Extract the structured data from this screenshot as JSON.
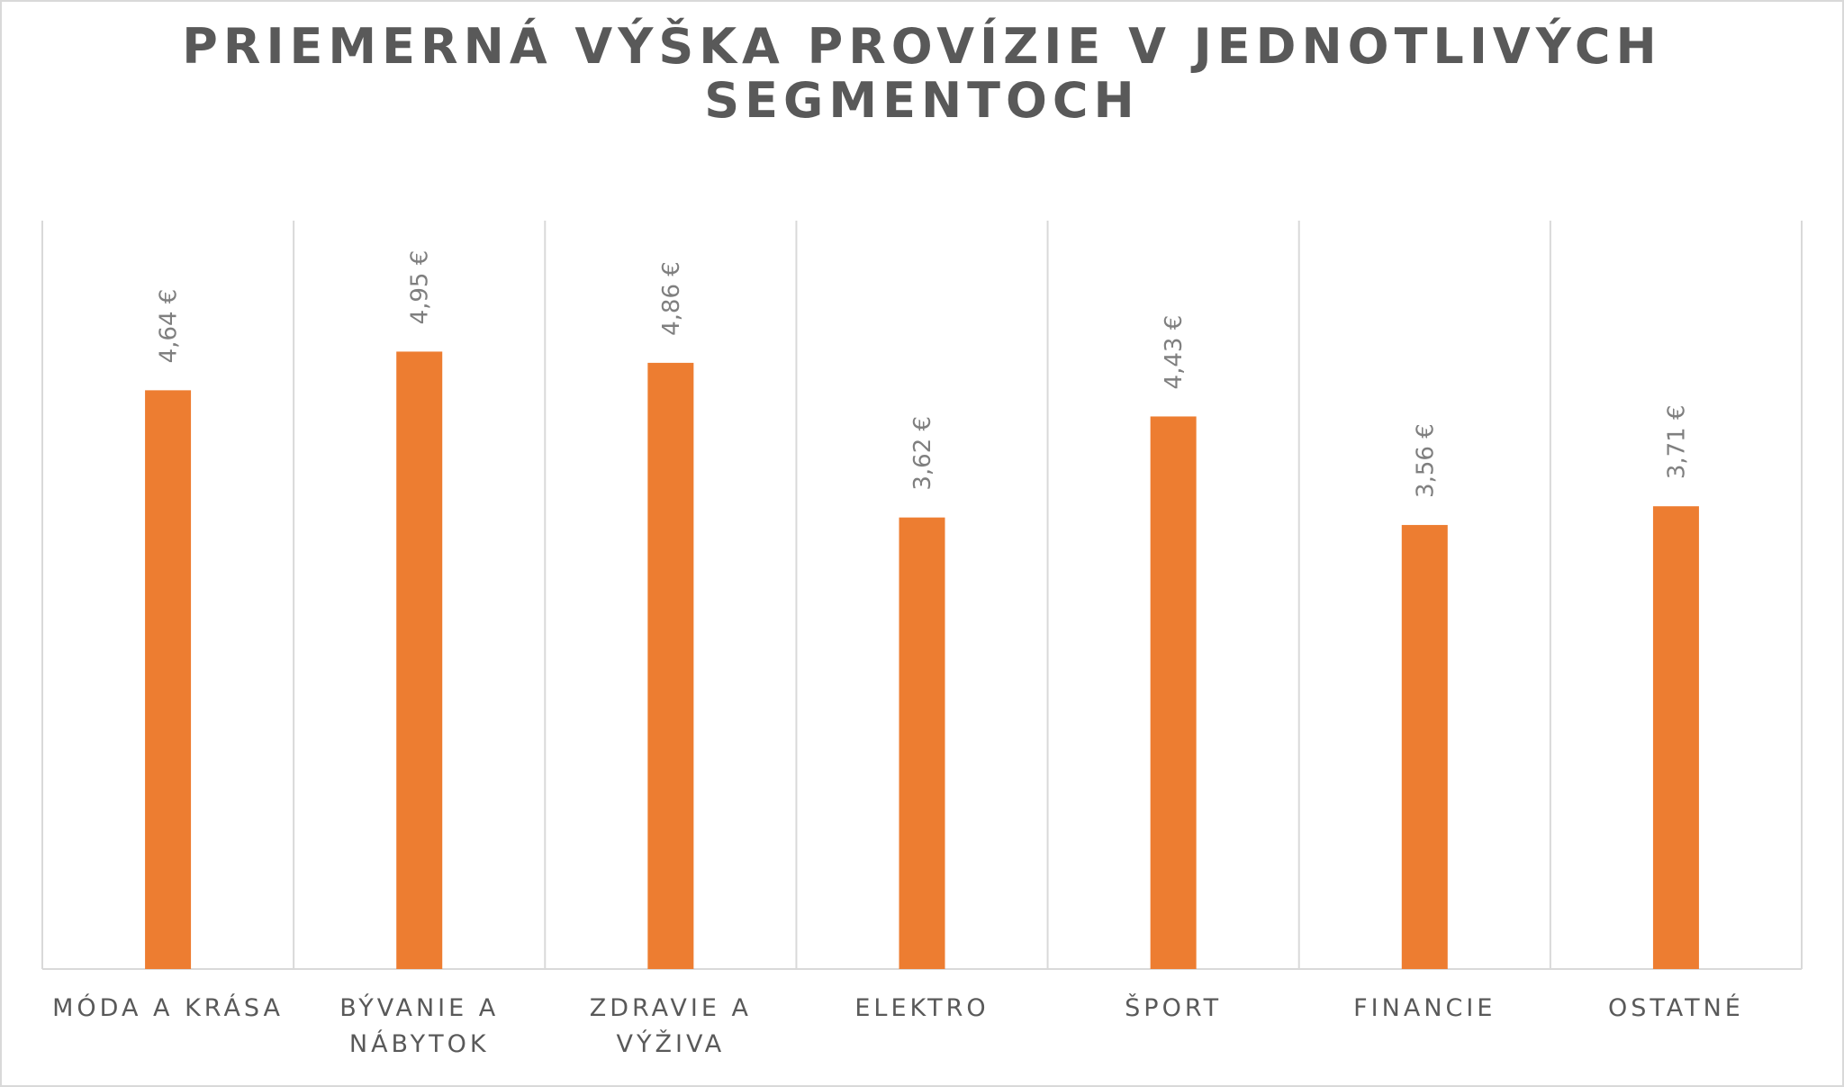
{
  "chart_data": {
    "type": "bar",
    "title_lines": [
      "PRIEMERNÁ VÝŠKA PROVÍZIE V JEDNOTLIVÝCH",
      "SEGMENTOCH"
    ],
    "categories": [
      [
        "MÓDA A KRÁSA"
      ],
      [
        "BÝVANIE A",
        "NÁBYTOK"
      ],
      [
        "ZDRAVIE A",
        "VÝŽIVA"
      ],
      [
        "ELEKTRO"
      ],
      [
        "ŠPORT"
      ],
      [
        "FINANCIE"
      ],
      [
        "OSTATNÉ"
      ]
    ],
    "values": [
      4.64,
      4.95,
      4.86,
      3.62,
      4.43,
      3.56,
      3.71
    ],
    "data_labels": [
      "4,64 €",
      "4,95 €",
      "4,86 €",
      "3,62 €",
      "4,43 €",
      "3,56 €",
      "3,71 €"
    ],
    "ylim": [
      0,
      6
    ],
    "grid": "vertical-category-separators",
    "legend": "none",
    "bar_color": "#ed7d31",
    "grid_color": "#d9d9d9",
    "label_color": "#7f7f7f",
    "text_color": "#595959"
  }
}
